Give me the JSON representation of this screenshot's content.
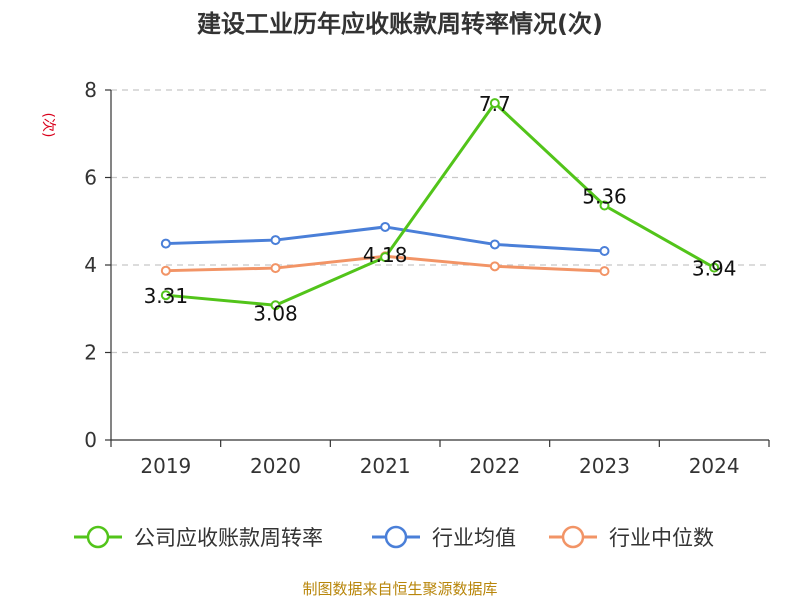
{
  "chart_data": {
    "type": "line",
    "title": "建设工业历年应收账款周转率情况(次)",
    "ylabel": "(次)",
    "categories": [
      "2019",
      "2020",
      "2021",
      "2022",
      "2023",
      "2024"
    ],
    "ylim": [
      0,
      8
    ],
    "yticks": [
      0,
      2,
      4,
      6,
      8
    ],
    "grid": true,
    "legend_position": "bottom",
    "series": [
      {
        "name": "公司应收账款周转率",
        "color": "#52c41a",
        "values": [
          3.31,
          3.08,
          4.18,
          7.7,
          5.36,
          3.94
        ],
        "labels": [
          "3.31",
          "3.08",
          "4.18",
          "7.7",
          "5.36",
          "3.94"
        ]
      },
      {
        "name": "行业均值",
        "color": "#4a7fd8",
        "values": [
          4.49,
          4.57,
          4.87,
          4.47,
          4.32,
          null
        ]
      },
      {
        "name": "行业中位数",
        "color": "#f29466",
        "values": [
          3.87,
          3.93,
          4.2,
          3.97,
          3.86,
          null
        ]
      }
    ]
  },
  "source": "制图数据来自恒生聚源数据库"
}
